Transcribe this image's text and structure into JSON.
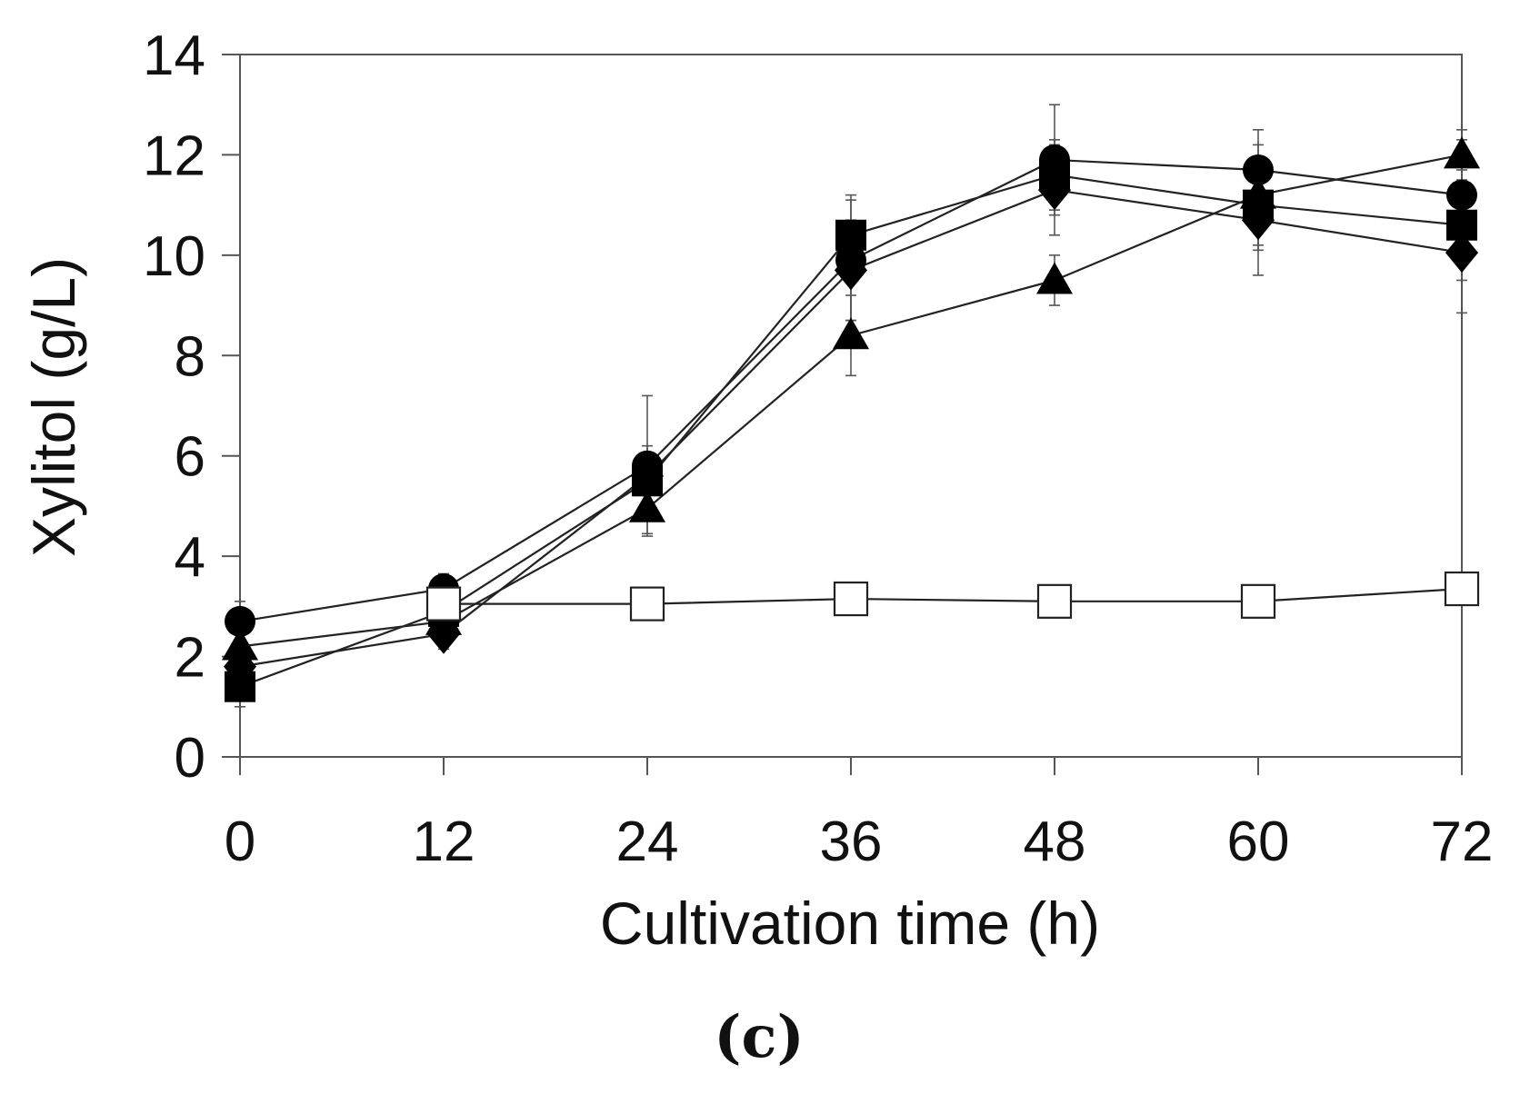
{
  "chart_data": {
    "type": "line",
    "title": "",
    "panel_label": "(c)",
    "xlabel": "Cultivation time (h)",
    "ylabel": "Xylitol (g/L)",
    "xlim": [
      0,
      72
    ],
    "ylim": [
      0,
      14
    ],
    "x_ticks": [
      0,
      12,
      24,
      36,
      48,
      60,
      72
    ],
    "y_ticks": [
      0,
      2,
      4,
      6,
      8,
      10,
      12,
      14
    ],
    "x_tick_labels": [
      "0",
      "12",
      "24",
      "36",
      "48",
      "60",
      "72"
    ],
    "y_tick_labels": [
      "0",
      "2",
      "4",
      "6",
      "8",
      "10",
      "12",
      "14"
    ],
    "grid": false,
    "legend": "none",
    "colors": {
      "line": "#222222",
      "marker_fill": "#000000",
      "open_marker_fill": "#ffffff"
    },
    "series": [
      {
        "name": "circle",
        "marker": "circle",
        "x": [
          0,
          12,
          24,
          36,
          48,
          60,
          72
        ],
        "values": [
          2.7,
          3.35,
          5.8,
          9.9,
          11.9,
          11.7,
          11.2
        ],
        "errors": [
          0.4,
          0.3,
          1.4,
          1.2,
          1.1,
          0.8,
          1.1
        ]
      },
      {
        "name": "square",
        "marker": "square",
        "x": [
          0,
          12,
          24,
          36,
          48,
          60,
          72
        ],
        "values": [
          1.4,
          2.9,
          5.5,
          10.4,
          11.6,
          11.0,
          10.6
        ],
        "errors": [
          0.4,
          0.3,
          0.5,
          0.8,
          0.7,
          0.9,
          1.1
        ]
      },
      {
        "name": "diamond",
        "marker": "diamond",
        "x": [
          0,
          12,
          24,
          36,
          48,
          60,
          72
        ],
        "values": [
          1.8,
          2.45,
          5.6,
          9.7,
          11.3,
          10.7,
          10.05
        ],
        "errors": [
          0.3,
          0.3,
          0.6,
          1.0,
          0.9,
          1.1,
          1.2
        ]
      },
      {
        "name": "triangle",
        "marker": "triangle",
        "x": [
          0,
          12,
          24,
          36,
          48,
          60,
          72
        ],
        "values": [
          2.2,
          2.7,
          4.95,
          8.4,
          9.5,
          11.2,
          12.0
        ],
        "errors": [
          0.3,
          0.3,
          0.5,
          0.8,
          0.5,
          1.0,
          0.5
        ]
      },
      {
        "name": "open-square",
        "marker": "open-square",
        "x": [
          12,
          24,
          36,
          48,
          60,
          72
        ],
        "values": [
          3.05,
          3.05,
          3.15,
          3.1,
          3.1,
          3.35
        ],
        "errors": []
      }
    ]
  }
}
